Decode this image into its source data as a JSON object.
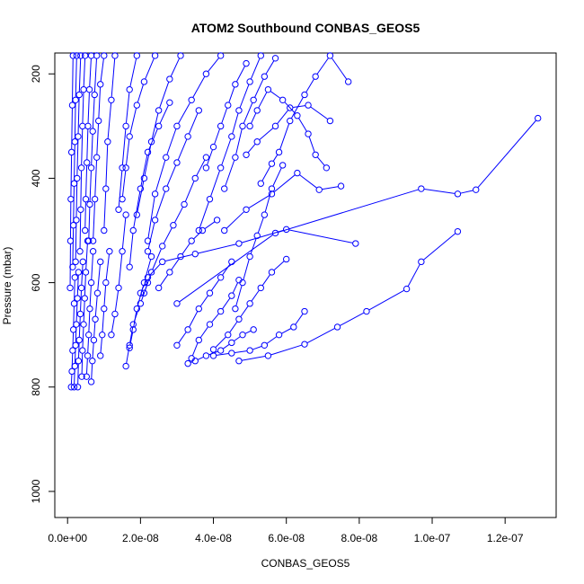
{
  "chart_data": {
    "type": "line",
    "title": "ATOM2 Southbound CONBAS_GEOS5",
    "xlabel": "CONBAS_GEOS5",
    "ylabel": "Pressure (mbar)",
    "xlim": [
      -3.5e-09,
      1.34e-07
    ],
    "ylim": [
      1050,
      160
    ],
    "y_inverted": true,
    "x_ticks": [
      0,
      2e-08,
      4e-08,
      6e-08,
      8e-08,
      1e-07,
      1.2e-07
    ],
    "x_tick_labels": [
      "0.0e+00",
      "2.0e-08",
      "4.0e-08",
      "6.0e-08",
      "8.0e-08",
      "1.0e-07",
      "1.2e-07"
    ],
    "y_ticks": [
      200,
      400,
      600,
      800,
      1000
    ],
    "y_tick_labels": [
      "200",
      "400",
      "600",
      "800",
      "1000"
    ],
    "color": "#0000ff",
    "marker": "open-circle",
    "grid": false,
    "series": [
      {
        "x": [
          1.29e-07,
          1.12e-07,
          1.07e-07,
          9.7e-08,
          5.7e-08,
          3e-08
        ],
        "y": [
          285,
          422,
          430,
          420,
          505,
          640
        ]
      },
      {
        "x": [
          1.07e-07,
          9.7e-08,
          9.3e-08,
          8.2e-08,
          7.4e-08,
          6.5e-08,
          5.5e-08,
          4.7e-08
        ],
        "y": [
          502,
          560,
          612,
          655,
          685,
          718,
          740,
          750
        ]
      },
      {
        "x": [
          7.9e-08,
          6e-08,
          4.7e-08,
          3.5e-08,
          2.6e-08,
          2.2e-08,
          2e-08
        ],
        "y": [
          525,
          498,
          525,
          545,
          560,
          590,
          620
        ]
      },
      {
        "x": [
          7.5e-08,
          6.9e-08,
          6.3e-08,
          5.6e-08,
          4.9e-08,
          4.3e-08
        ],
        "y": [
          415,
          422,
          390,
          430,
          460,
          500
        ]
      },
      {
        "x": [
          7.7e-08,
          7.2e-08,
          6.8e-08,
          6.5e-08,
          6.1e-08,
          5.8e-08,
          5.6e-08,
          5.3e-08
        ],
        "y": [
          215,
          165,
          205,
          240,
          290,
          350,
          372,
          410
        ]
      },
      {
        "x": [
          7.2e-08,
          6.6e-08,
          6.1e-08,
          5.7e-08,
          5.2e-08,
          4.9e-08
        ],
        "y": [
          290,
          260,
          265,
          300,
          330,
          355
        ]
      },
      {
        "x": [
          7.1e-08,
          6.8e-08,
          6.6e-08,
          6.3e-08,
          5.9e-08,
          5.5e-08,
          5.2e-08,
          5e-08
        ],
        "y": [
          380,
          355,
          315,
          280,
          250,
          230,
          270,
          300
        ]
      },
      {
        "x": [
          6.5e-08,
          6.2e-08,
          5.8e-08,
          5.4e-08,
          5e-08,
          4.5e-08,
          4e-08
        ],
        "y": [
          655,
          685,
          700,
          720,
          730,
          735,
          740
        ]
      },
      {
        "x": [
          6e-08,
          5.6e-08,
          5.3e-08,
          5e-08,
          4.7e-08,
          4.4e-08,
          4e-08
        ],
        "y": [
          555,
          580,
          610,
          640,
          670,
          700,
          728
        ]
      },
      {
        "x": [
          5.9e-08,
          5.6e-08,
          5.4e-08,
          5.2e-08,
          5e-08,
          4.8e-08,
          4.6e-08
        ],
        "y": [
          375,
          420,
          470,
          510,
          550,
          600,
          650
        ]
      },
      {
        "x": [
          5.7e-08,
          5.4e-08,
          5.1e-08,
          4.8e-08,
          4.6e-08,
          4.3e-08
        ],
        "y": [
          170,
          205,
          250,
          300,
          360,
          420
        ]
      },
      {
        "x": [
          5.3e-08,
          5e-08,
          4.7e-08,
          4.5e-08,
          4.2e-08,
          3.9e-08,
          3.6e-08
        ],
        "y": [
          165,
          215,
          270,
          320,
          380,
          440,
          500
        ]
      },
      {
        "x": [
          4.9e-08,
          4.6e-08,
          4.4e-08,
          4.2e-08,
          4e-08,
          3.8e-08
        ],
        "y": [
          180,
          220,
          260,
          300,
          340,
          380
        ]
      },
      {
        "x": [
          5.1e-08,
          4.8e-08,
          4.5e-08,
          4.2e-08,
          3.8e-08,
          3.5e-08,
          3.3e-08
        ],
        "y": [
          690,
          700,
          715,
          730,
          740,
          750,
          755
        ]
      },
      {
        "x": [
          4.7e-08,
          4.5e-08,
          4.2e-08,
          3.9e-08,
          3.6e-08,
          3.4e-08
        ],
        "y": [
          595,
          625,
          655,
          680,
          710,
          745
        ]
      },
      {
        "x": [
          4.5e-08,
          4.2e-08,
          3.9e-08,
          3.6e-08,
          3.3e-08,
          3e-08
        ],
        "y": [
          560,
          590,
          620,
          650,
          690,
          720
        ]
      },
      {
        "x": [
          4.1e-08,
          3.7e-08,
          3.4e-08,
          3.1e-08,
          2.8e-08,
          2.5e-08
        ],
        "y": [
          480,
          500,
          520,
          550,
          580,
          610
        ]
      },
      {
        "x": [
          3.8e-08,
          3.5e-08,
          3.2e-08,
          2.9e-08,
          2.6e-08,
          2.3e-08,
          2.1e-08
        ],
        "y": [
          360,
          400,
          450,
          490,
          530,
          580,
          620
        ]
      },
      {
        "x": [
          3.6e-08,
          3.3e-08,
          3e-08,
          2.7e-08,
          2.4e-08,
          2.2e-08
        ],
        "y": [
          270,
          320,
          370,
          420,
          480,
          540
        ]
      },
      {
        "x": [
          4.2e-08,
          3.8e-08,
          3.4e-08,
          3e-08,
          2.7e-08,
          2.4e-08,
          2.2e-08
        ],
        "y": [
          165,
          200,
          250,
          300,
          360,
          430,
          520
        ]
      },
      {
        "x": [
          3.1e-08,
          2.8e-08,
          2.5e-08,
          2.3e-08,
          2.1e-08,
          1.9e-08
        ],
        "y": [
          165,
          210,
          270,
          330,
          400,
          470
        ]
      },
      {
        "x": [
          2.8e-08,
          2.5e-08,
          2.2e-08,
          2e-08,
          1.8e-08,
          1.7e-08
        ],
        "y": [
          255,
          300,
          350,
          420,
          500,
          570
        ]
      },
      {
        "x": [
          2.4e-08,
          2.1e-08,
          1.9e-08,
          1.7e-08,
          1.6e-08,
          1.5e-08
        ],
        "y": [
          165,
          215,
          260,
          320,
          380,
          440
        ]
      },
      {
        "x": [
          2.2e-08,
          2e-08,
          1.8e-08,
          1.7e-08,
          1.6e-08
        ],
        "y": [
          600,
          640,
          680,
          720,
          760
        ]
      },
      {
        "x": [
          2.3e-08,
          2.1e-08,
          1.9e-08,
          1.8e-08,
          1.7e-08
        ],
        "y": [
          550,
          600,
          650,
          690,
          725
        ]
      },
      {
        "x": [
          1.9e-08,
          1.7e-08,
          1.6e-08,
          1.5e-08,
          1.4e-08
        ],
        "y": [
          165,
          230,
          300,
          380,
          460
        ]
      },
      {
        "x": [
          1.6e-08,
          1.5e-08,
          1.4e-08,
          1.3e-08,
          1.2e-08
        ],
        "y": [
          470,
          540,
          610,
          660,
          700
        ]
      },
      {
        "x": [
          1.3e-08,
          1.2e-08,
          1.1e-08,
          1.05e-08,
          1e-08
        ],
        "y": [
          165,
          250,
          330,
          420,
          500
        ]
      },
      {
        "x": [
          1.15e-08,
          1.05e-08,
          1e-08,
          9.5e-09,
          9e-09
        ],
        "y": [
          540,
          600,
          650,
          700,
          740
        ]
      },
      {
        "x": [
          1e-08,
          9e-09,
          8.5e-09,
          8e-09,
          7.5e-09,
          7e-09
        ],
        "y": [
          165,
          220,
          290,
          360,
          440,
          520
        ]
      },
      {
        "x": [
          9e-09,
          8.2e-09,
          7.6e-09,
          7.2e-09,
          6.8e-09,
          6.5e-09
        ],
        "y": [
          560,
          620,
          670,
          710,
          750,
          790
        ]
      },
      {
        "x": [
          8e-09,
          7.4e-09,
          6.9e-09,
          6.5e-09,
          6.1e-09,
          5.8e-09
        ],
        "y": [
          165,
          240,
          310,
          380,
          450,
          520
        ]
      },
      {
        "x": [
          7e-09,
          6.5e-09,
          6.1e-09,
          5.8e-09,
          5.5e-09,
          5.2e-09
        ],
        "y": [
          540,
          600,
          650,
          700,
          740,
          780
        ]
      },
      {
        "x": [
          6.5e-09,
          6e-09,
          5.6e-09,
          5.3e-09,
          5e-09,
          4.8e-09
        ],
        "y": [
          165,
          230,
          300,
          370,
          440,
          500
        ]
      },
      {
        "x": [
          5.5e-09,
          5e-09,
          4.7e-09,
          4.4e-09,
          4.1e-09,
          3.9e-09
        ],
        "y": [
          520,
          580,
          630,
          680,
          730,
          780
        ]
      },
      {
        "x": [
          4.8e-09,
          4.4e-09,
          4.1e-09,
          3.8e-09,
          3.6e-09,
          3.4e-09
        ],
        "y": [
          165,
          230,
          300,
          380,
          460,
          540
        ]
      },
      {
        "x": [
          4.2e-09,
          3.8e-09,
          3.5e-09,
          3.2e-09,
          3e-09,
          2.8e-09
        ],
        "y": [
          560,
          610,
          660,
          710,
          750,
          800
        ]
      },
      {
        "x": [
          3.6e-09,
          3.2e-09,
          2.9e-09,
          2.6e-09,
          2.4e-09,
          2.2e-09
        ],
        "y": [
          165,
          240,
          320,
          400,
          480,
          560
        ]
      },
      {
        "x": [
          3e-09,
          2.7e-09,
          2.4e-09,
          2.2e-09,
          2e-09,
          1.8e-09
        ],
        "y": [
          580,
          630,
          680,
          720,
          760,
          800
        ]
      },
      {
        "x": [
          2.5e-09,
          2.2e-09,
          2e-09,
          1.8e-09,
          1.6e-09,
          1.4e-09
        ],
        "y": [
          165,
          250,
          330,
          410,
          490,
          570
        ]
      },
      {
        "x": [
          2e-09,
          1.8e-09,
          1.6e-09,
          1.4e-09,
          1.2e-09,
          1e-09
        ],
        "y": [
          590,
          640,
          690,
          730,
          770,
          800
        ]
      },
      {
        "x": [
          1.5e-09,
          1.3e-09,
          1.1e-09,
          9e-10,
          8e-10,
          7e-10
        ],
        "y": [
          165,
          260,
          350,
          440,
          520,
          610
        ]
      }
    ]
  }
}
